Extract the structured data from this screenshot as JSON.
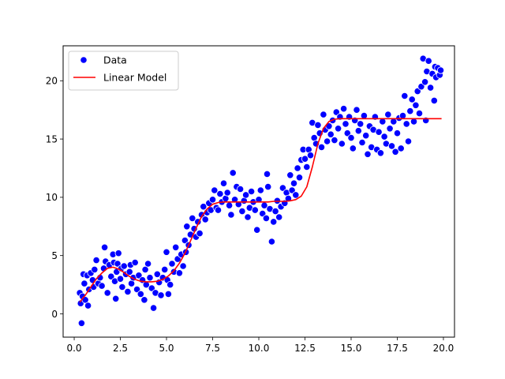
{
  "chart_data": {
    "type": "scatter",
    "title": "",
    "xlabel": "",
    "ylabel": "",
    "xlim": [
      -0.6,
      20.6
    ],
    "ylim": [
      -2.0,
      23.0
    ],
    "xticks": [
      0.0,
      2.5,
      5.0,
      7.5,
      10.0,
      12.5,
      15.0,
      17.5,
      20.0
    ],
    "xtick_labels": [
      "0.0",
      "2.5",
      "5.0",
      "7.5",
      "10.0",
      "12.5",
      "15.0",
      "17.5",
      "20.0"
    ],
    "yticks": [
      0,
      5,
      10,
      15,
      20
    ],
    "ytick_labels": [
      "0",
      "5",
      "10",
      "15",
      "20"
    ],
    "grid": false,
    "legend_position": "top-left",
    "series": [
      {
        "name": "Data",
        "kind": "scatter",
        "color": "#0000ff",
        "edgecolor": "#ffffff",
        "points": [
          [
            0.3,
            1.8
          ],
          [
            0.35,
            0.9
          ],
          [
            0.4,
            -0.8
          ],
          [
            0.45,
            1.5
          ],
          [
            0.5,
            3.4
          ],
          [
            0.55,
            2.6
          ],
          [
            0.6,
            1.2
          ],
          [
            0.7,
            3.3
          ],
          [
            0.75,
            0.7
          ],
          [
            0.8,
            2.1
          ],
          [
            0.9,
            3.5
          ],
          [
            1.0,
            2.9
          ],
          [
            1.05,
            2.3
          ],
          [
            1.1,
            3.8
          ],
          [
            1.2,
            4.6
          ],
          [
            1.3,
            2.6
          ],
          [
            1.4,
            3.1
          ],
          [
            1.5,
            2.4
          ],
          [
            1.6,
            3.9
          ],
          [
            1.65,
            5.7
          ],
          [
            1.7,
            4.5
          ],
          [
            1.8,
            1.8
          ],
          [
            1.9,
            4.2
          ],
          [
            2.0,
            3.2
          ],
          [
            2.1,
            5.1
          ],
          [
            2.15,
            4.4
          ],
          [
            2.2,
            2.8
          ],
          [
            2.25,
            1.3
          ],
          [
            2.3,
            3.6
          ],
          [
            2.35,
            4.3
          ],
          [
            2.4,
            5.2
          ],
          [
            2.5,
            3.0
          ],
          [
            2.55,
            3.9
          ],
          [
            2.6,
            2.3
          ],
          [
            2.7,
            4.1
          ],
          [
            2.8,
            3.4
          ],
          [
            2.9,
            1.9
          ],
          [
            3.0,
            3.6
          ],
          [
            3.05,
            4.2
          ],
          [
            3.1,
            2.6
          ],
          [
            3.2,
            3.1
          ],
          [
            3.3,
            4.4
          ],
          [
            3.4,
            2.1
          ],
          [
            3.5,
            3.3
          ],
          [
            3.6,
            1.7
          ],
          [
            3.7,
            2.9
          ],
          [
            3.8,
            1.2
          ],
          [
            3.85,
            3.8
          ],
          [
            3.9,
            2.5
          ],
          [
            4.0,
            4.3
          ],
          [
            4.1,
            3.1
          ],
          [
            4.2,
            2.2
          ],
          [
            4.3,
            0.5
          ],
          [
            4.4,
            1.8
          ],
          [
            4.5,
            3.4
          ],
          [
            4.6,
            2.7
          ],
          [
            4.7,
            1.6
          ],
          [
            4.8,
            3.1
          ],
          [
            4.9,
            3.8
          ],
          [
            5.0,
            5.3
          ],
          [
            5.05,
            2.9
          ],
          [
            5.1,
            1.7
          ],
          [
            5.2,
            2.5
          ],
          [
            5.3,
            4.3
          ],
          [
            5.4,
            3.6
          ],
          [
            5.5,
            5.7
          ],
          [
            5.6,
            4.7
          ],
          [
            5.7,
            3.5
          ],
          [
            5.8,
            5.1
          ],
          [
            5.9,
            4.1
          ],
          [
            6.0,
            6.3
          ],
          [
            6.05,
            5.3
          ],
          [
            6.1,
            7.5
          ],
          [
            6.2,
            5.9
          ],
          [
            6.3,
            6.8
          ],
          [
            6.4,
            8.2
          ],
          [
            6.5,
            7.3
          ],
          [
            6.6,
            6.6
          ],
          [
            6.7,
            7.9
          ],
          [
            6.8,
            6.9
          ],
          [
            6.9,
            8.5
          ],
          [
            7.0,
            9.2
          ],
          [
            7.1,
            8.1
          ],
          [
            7.2,
            8.7
          ],
          [
            7.3,
            9.5
          ],
          [
            7.4,
            8.9
          ],
          [
            7.5,
            9.8
          ],
          [
            7.6,
            10.6
          ],
          [
            7.7,
            9.1
          ],
          [
            7.8,
            8.9
          ],
          [
            7.9,
            10.3
          ],
          [
            8.0,
            9.6
          ],
          [
            8.1,
            11.2
          ],
          [
            8.2,
            9.9
          ],
          [
            8.3,
            10.4
          ],
          [
            8.4,
            9.3
          ],
          [
            8.5,
            8.5
          ],
          [
            8.6,
            12.1
          ],
          [
            8.7,
            9.8
          ],
          [
            8.8,
            10.9
          ],
          [
            8.9,
            9.4
          ],
          [
            9.0,
            10.7
          ],
          [
            9.1,
            8.8
          ],
          [
            9.2,
            9.7
          ],
          [
            9.3,
            10.2
          ],
          [
            9.4,
            8.3
          ],
          [
            9.5,
            9.1
          ],
          [
            9.6,
            10.5
          ],
          [
            9.7,
            9.6
          ],
          [
            9.8,
            8.9
          ],
          [
            9.9,
            7.2
          ],
          [
            10.0,
            9.8
          ],
          [
            10.1,
            10.6
          ],
          [
            10.2,
            8.6
          ],
          [
            10.3,
            9.3
          ],
          [
            10.4,
            8.2
          ],
          [
            10.45,
            12.0
          ],
          [
            10.5,
            10.9
          ],
          [
            10.6,
            9.0
          ],
          [
            10.7,
            6.2
          ],
          [
            10.8,
            7.9
          ],
          [
            10.9,
            8.8
          ],
          [
            11.0,
            9.7
          ],
          [
            11.1,
            8.3
          ],
          [
            11.2,
            9.2
          ],
          [
            11.3,
            10.8
          ],
          [
            11.4,
            9.5
          ],
          [
            11.5,
            10.4
          ],
          [
            11.6,
            9.9
          ],
          [
            11.7,
            11.9
          ],
          [
            11.8,
            10.6
          ],
          [
            11.9,
            11.2
          ],
          [
            12.0,
            10.2
          ],
          [
            12.1,
            12.5
          ],
          [
            12.2,
            11.7
          ],
          [
            12.3,
            13.2
          ],
          [
            12.4,
            14.1
          ],
          [
            12.5,
            13.3
          ],
          [
            12.6,
            12.6
          ],
          [
            12.7,
            14.1
          ],
          [
            12.8,
            13.6
          ],
          [
            12.9,
            16.4
          ],
          [
            13.0,
            15.1
          ],
          [
            13.1,
            14.6
          ],
          [
            13.2,
            16.2
          ],
          [
            13.3,
            15.5
          ],
          [
            13.4,
            14.3
          ],
          [
            13.5,
            17.1
          ],
          [
            13.6,
            15.8
          ],
          [
            13.7,
            14.8
          ],
          [
            13.8,
            16.1
          ],
          [
            13.9,
            15.4
          ],
          [
            14.0,
            16.6
          ],
          [
            14.1,
            14.9
          ],
          [
            14.2,
            17.3
          ],
          [
            14.3,
            15.9
          ],
          [
            14.4,
            16.9
          ],
          [
            14.5,
            14.6
          ],
          [
            14.6,
            17.6
          ],
          [
            14.7,
            16.3
          ],
          [
            14.8,
            15.5
          ],
          [
            14.9,
            16.9
          ],
          [
            15.0,
            15.1
          ],
          [
            15.1,
            14.2
          ],
          [
            15.2,
            16.6
          ],
          [
            15.3,
            17.5
          ],
          [
            15.4,
            15.7
          ],
          [
            15.5,
            16.3
          ],
          [
            15.6,
            14.7
          ],
          [
            15.7,
            17.0
          ],
          [
            15.8,
            15.3
          ],
          [
            15.9,
            13.7
          ],
          [
            16.0,
            16.1
          ],
          [
            16.1,
            14.3
          ],
          [
            16.2,
            15.8
          ],
          [
            16.3,
            16.9
          ],
          [
            16.4,
            14.1
          ],
          [
            16.5,
            15.6
          ],
          [
            16.6,
            13.8
          ],
          [
            16.7,
            16.5
          ],
          [
            16.8,
            15.2
          ],
          [
            16.9,
            14.6
          ],
          [
            17.0,
            17.1
          ],
          [
            17.1,
            15.9
          ],
          [
            17.2,
            14.4
          ],
          [
            17.3,
            16.5
          ],
          [
            17.4,
            13.9
          ],
          [
            17.5,
            15.5
          ],
          [
            17.6,
            16.8
          ],
          [
            17.7,
            14.2
          ],
          [
            17.8,
            17.0
          ],
          [
            17.9,
            18.7
          ],
          [
            18.0,
            16.3
          ],
          [
            18.1,
            14.8
          ],
          [
            18.2,
            17.4
          ],
          [
            18.3,
            18.4
          ],
          [
            18.4,
            16.5
          ],
          [
            18.5,
            17.9
          ],
          [
            18.6,
            19.1
          ],
          [
            18.7,
            17.2
          ],
          [
            18.8,
            19.5
          ],
          [
            18.9,
            21.9
          ],
          [
            19.0,
            19.9
          ],
          [
            19.05,
            16.6
          ],
          [
            19.1,
            20.8
          ],
          [
            19.2,
            21.7
          ],
          [
            19.3,
            19.4
          ],
          [
            19.4,
            20.6
          ],
          [
            19.5,
            18.3
          ],
          [
            19.55,
            21.2
          ],
          [
            19.6,
            20.3
          ],
          [
            19.7,
            21.1
          ],
          [
            19.8,
            20.5
          ],
          [
            19.85,
            20.9
          ]
        ]
      },
      {
        "name": "Linear Model",
        "kind": "line",
        "color": "#ff0000",
        "points": [
          [
            0.3,
            1.0
          ],
          [
            0.6,
            1.6
          ],
          [
            0.9,
            2.3
          ],
          [
            1.2,
            3.0
          ],
          [
            1.5,
            3.5
          ],
          [
            1.8,
            3.9
          ],
          [
            2.1,
            4.0
          ],
          [
            2.4,
            3.85
          ],
          [
            2.7,
            3.55
          ],
          [
            3.0,
            3.2
          ],
          [
            3.3,
            2.95
          ],
          [
            3.6,
            2.8
          ],
          [
            3.9,
            2.75
          ],
          [
            4.2,
            2.75
          ],
          [
            4.5,
            2.8
          ],
          [
            4.8,
            2.95
          ],
          [
            5.1,
            3.25
          ],
          [
            5.4,
            3.7
          ],
          [
            5.7,
            4.35
          ],
          [
            6.0,
            5.2
          ],
          [
            6.3,
            6.25
          ],
          [
            6.6,
            7.35
          ],
          [
            6.9,
            8.35
          ],
          [
            7.2,
            9.0
          ],
          [
            7.5,
            9.4
          ],
          [
            7.8,
            9.55
          ],
          [
            8.1,
            9.6
          ],
          [
            8.4,
            9.6
          ],
          [
            8.7,
            9.6
          ],
          [
            9.0,
            9.6
          ],
          [
            9.3,
            9.6
          ],
          [
            9.6,
            9.6
          ],
          [
            9.9,
            9.6
          ],
          [
            10.2,
            9.6
          ],
          [
            10.5,
            9.6
          ],
          [
            10.8,
            9.65
          ],
          [
            11.1,
            9.65
          ],
          [
            11.4,
            9.65
          ],
          [
            11.7,
            9.7
          ],
          [
            12.0,
            9.8
          ],
          [
            12.3,
            10.1
          ],
          [
            12.6,
            10.9
          ],
          [
            12.9,
            12.6
          ],
          [
            13.2,
            14.6
          ],
          [
            13.5,
            15.9
          ],
          [
            13.8,
            16.5
          ],
          [
            14.1,
            16.7
          ],
          [
            14.4,
            16.75
          ],
          [
            14.7,
            16.75
          ],
          [
            15.0,
            16.75
          ],
          [
            15.5,
            16.75
          ],
          [
            16.0,
            16.75
          ],
          [
            16.5,
            16.75
          ],
          [
            17.0,
            16.75
          ],
          [
            17.5,
            16.75
          ],
          [
            18.0,
            16.75
          ],
          [
            18.5,
            16.75
          ],
          [
            19.0,
            16.75
          ],
          [
            19.5,
            16.75
          ],
          [
            19.9,
            16.75
          ]
        ]
      }
    ]
  }
}
